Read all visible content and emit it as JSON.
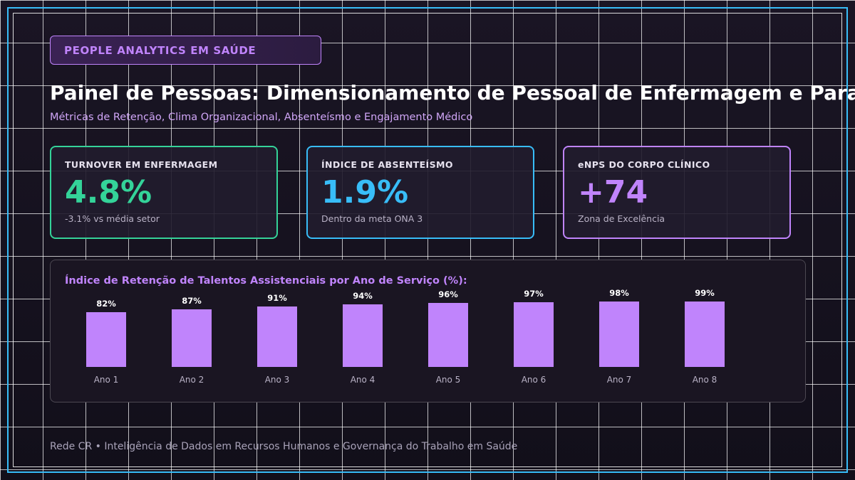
{
  "badge": {
    "label": "PEOPLE ANALYTICS EM SAÚDE"
  },
  "header": {
    "title": "Painel de Pessoas: Dimensionamento de Pessoal de Enfermagem e Para",
    "subtitle": "Métricas de Retenção, Clima Organizacional, Absenteísmo e Engajamento Médico"
  },
  "kpis": [
    {
      "label": "TURNOVER EM ENFERMAGEM",
      "value": "4.8%",
      "note": "-3.1% vs média setor",
      "color": "#34d399"
    },
    {
      "label": "ÍNDICE DE ABSENTEÍSMO",
      "value": "1.9%",
      "note": "Dentro da meta ONA 3",
      "color": "#38bdf8"
    },
    {
      "label": "eNPS DO CORPO CLÍNICO",
      "value": "+74",
      "note": "Zona de Excelência",
      "color": "#c084fc"
    }
  ],
  "chart_data": {
    "type": "bar",
    "title": "Índice de Retenção de Talentos Assistenciais por Ano de Serviço (%):",
    "categories": [
      "Ano 1",
      "Ano 2",
      "Ano 3",
      "Ano 4",
      "Ano 5",
      "Ano 6",
      "Ano 7",
      "Ano 8"
    ],
    "values": [
      82,
      87,
      91,
      94,
      96,
      97,
      98,
      99
    ],
    "value_labels": [
      "82%",
      "87%",
      "91%",
      "94%",
      "96%",
      "97%",
      "98%",
      "99%"
    ],
    "bar_color": "#c084fc",
    "xlabel": "",
    "ylabel": "",
    "ylim": [
      0,
      100
    ],
    "grid": false,
    "legend": "none"
  },
  "footer": {
    "text": "Rede CR • Inteligência de Dados em Recursos Humanos e Governança do Trabalho em Saúde"
  }
}
